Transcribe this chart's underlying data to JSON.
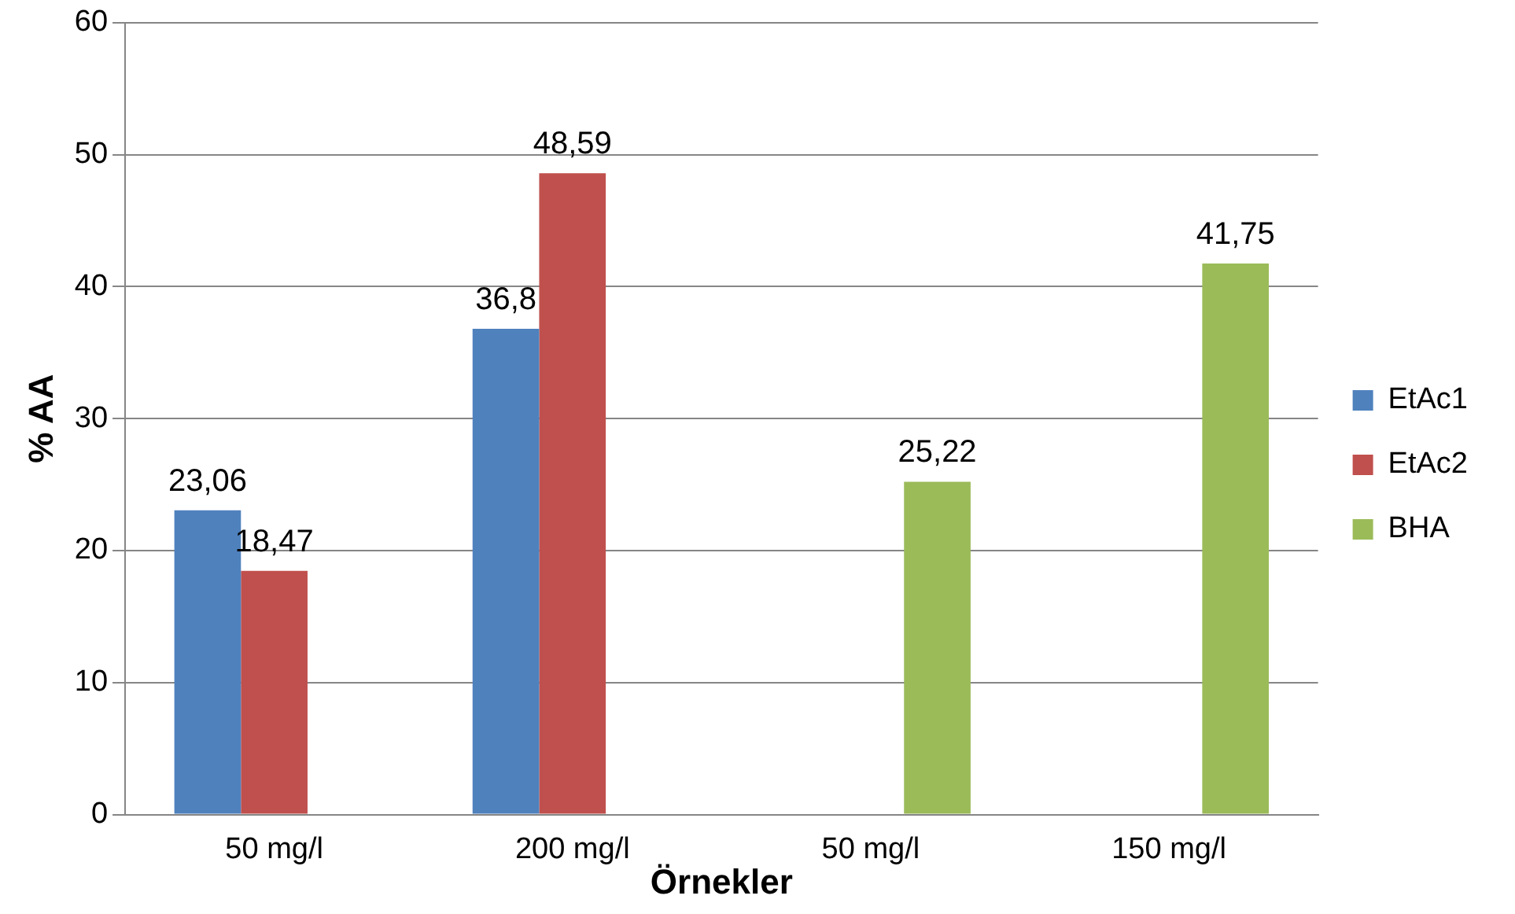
{
  "chart_data": {
    "type": "bar",
    "xlabel": "Örnekler",
    "ylabel": "% AA",
    "categories": [
      "50 mg/l",
      "200 mg/l",
      "50 mg/l",
      "150 mg/l"
    ],
    "series": [
      {
        "name": "EtAc1",
        "color": "#4f81bd",
        "values": [
          23.06,
          36.8,
          null,
          null
        ],
        "value_labels": [
          "23,06",
          "36,8",
          null,
          null
        ]
      },
      {
        "name": "EtAc2",
        "color": "#c0504d",
        "values": [
          18.47,
          48.59,
          null,
          null
        ],
        "value_labels": [
          "18,47",
          "48,59",
          null,
          null
        ]
      },
      {
        "name": "BHA",
        "color": "#9bbb59",
        "values": [
          null,
          null,
          25.22,
          41.75
        ],
        "value_labels": [
          null,
          null,
          "25,22",
          "41,75"
        ]
      }
    ],
    "ylim": [
      0,
      60
    ],
    "yticks": [
      0,
      10,
      20,
      30,
      40,
      50,
      60
    ],
    "grid": "y",
    "legend": "right"
  }
}
